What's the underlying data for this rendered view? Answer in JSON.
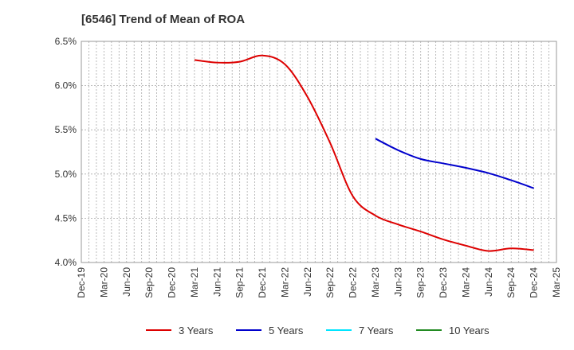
{
  "chart_data": {
    "type": "line",
    "title": "[6546]  Trend of Mean of ROA",
    "xlabel": "",
    "ylabel": "",
    "ylim": [
      4.0,
      6.5
    ],
    "yticks": [
      "6.5%",
      "6.0%",
      "5.5%",
      "5.0%",
      "4.5%",
      "4.0%"
    ],
    "ytick_values": [
      6.5,
      6.0,
      5.5,
      5.0,
      4.5,
      4.0
    ],
    "categories": [
      "Dec-19",
      "Mar-20",
      "Jun-20",
      "Sep-20",
      "Dec-20",
      "Mar-21",
      "Jun-21",
      "Sep-21",
      "Dec-21",
      "Mar-22",
      "Jun-22",
      "Sep-22",
      "Dec-22",
      "Mar-23",
      "Jun-23",
      "Sep-23",
      "Dec-23",
      "Mar-24",
      "Jun-24",
      "Sep-24",
      "Dec-24",
      "Mar-25"
    ],
    "grid": true,
    "legend_position": "bottom",
    "series": [
      {
        "name": "3 Years",
        "color": "#dd0000",
        "values": [
          null,
          null,
          null,
          null,
          null,
          6.29,
          6.26,
          6.27,
          6.34,
          6.24,
          5.87,
          5.35,
          4.75,
          4.53,
          4.43,
          4.35,
          4.26,
          4.19,
          4.13,
          4.16,
          4.14,
          null
        ]
      },
      {
        "name": "5 Years",
        "color": "#0000cc",
        "values": [
          null,
          null,
          null,
          null,
          null,
          null,
          null,
          null,
          null,
          null,
          null,
          null,
          null,
          5.4,
          5.27,
          5.17,
          5.12,
          5.07,
          5.01,
          4.93,
          4.84,
          null
        ]
      },
      {
        "name": "7 Years",
        "color": "#00e5ff",
        "values": [
          null,
          null,
          null,
          null,
          null,
          null,
          null,
          null,
          null,
          null,
          null,
          null,
          null,
          null,
          null,
          null,
          null,
          null,
          null,
          null,
          null,
          null
        ]
      },
      {
        "name": "10 Years",
        "color": "#228b22",
        "values": [
          null,
          null,
          null,
          null,
          null,
          null,
          null,
          null,
          null,
          null,
          null,
          null,
          null,
          null,
          null,
          null,
          null,
          null,
          null,
          null,
          null,
          null
        ]
      }
    ]
  }
}
